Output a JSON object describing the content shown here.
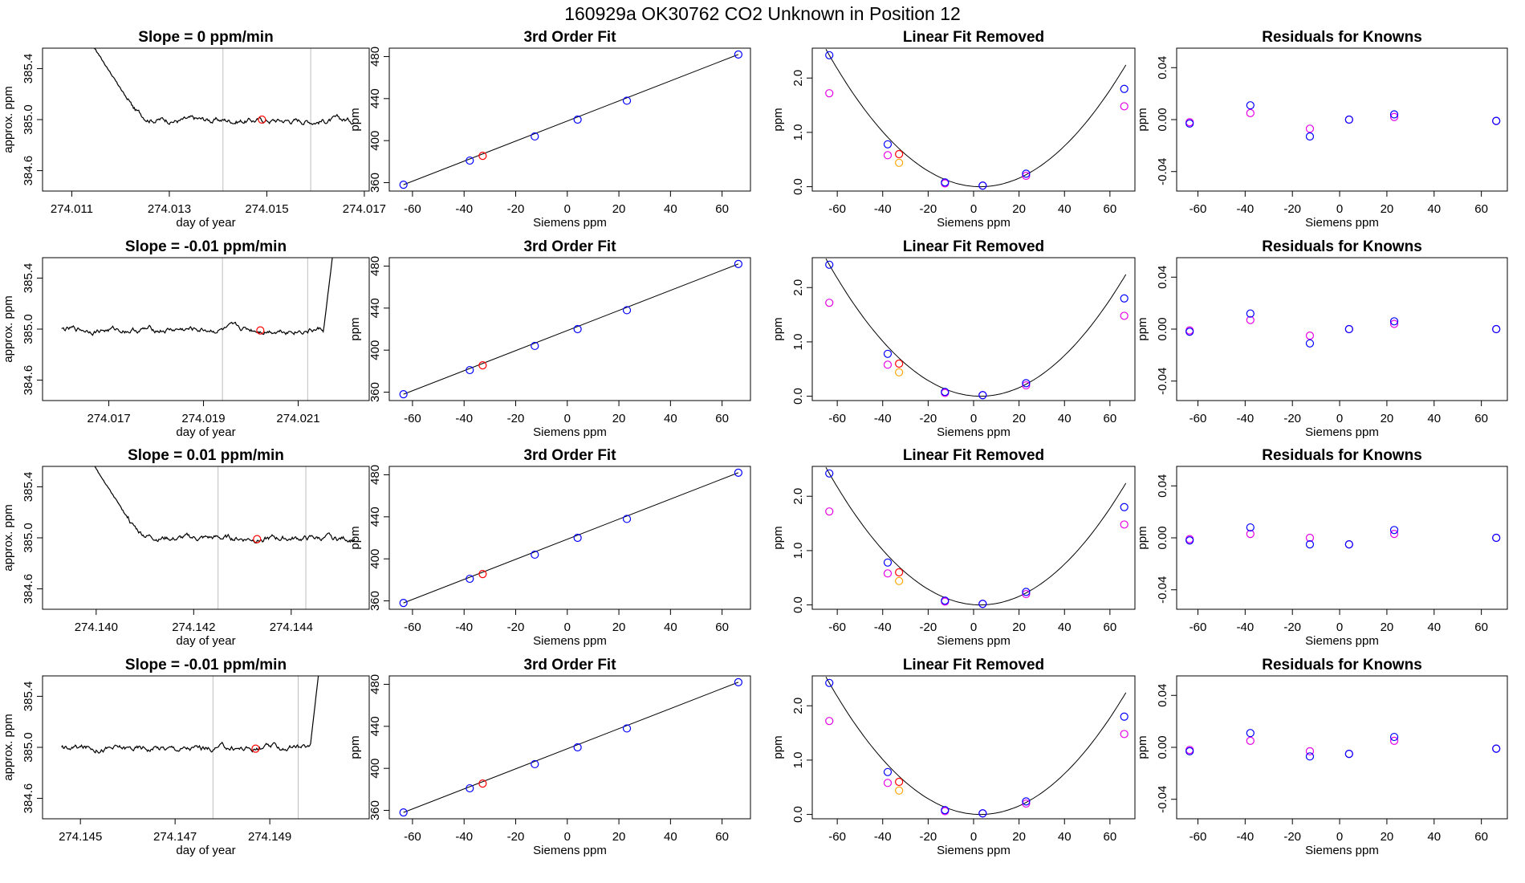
{
  "suptitle": "160929a      OK30762    CO2 Unknown in Position  12",
  "colors": {
    "known": "#0000ff",
    "aux": "#e600e6",
    "unknown": "#ff0000",
    "mid": "#ffa500",
    "vline": "#bebebe",
    "axis": "#000000"
  },
  "fit_data": {
    "x": [
      -63.5,
      -37.8,
      -12.6,
      4.0,
      23.1,
      66.3
    ],
    "y": [
      358,
      381,
      404,
      420,
      438,
      482
    ],
    "unknown": {
      "x": -32.8,
      "y": 385.5
    },
    "lfr_known": [
      2.42,
      0.78,
      0.08,
      0.02,
      0.24,
      1.8
    ],
    "lfr_aux": [
      1.72,
      0.58,
      0.06,
      0.02,
      0.2,
      1.48
    ],
    "lfr_unknown": 0.6,
    "lfr_mid": 0.44,
    "residuals": [
      {
        "known": [
          -0.003,
          0.011,
          -0.013,
          0.0,
          0.004,
          -0.001
        ],
        "aux": [
          -0.002,
          0.005,
          -0.007,
          0.0,
          0.002,
          -0.001
        ]
      },
      {
        "known": [
          -0.002,
          0.012,
          -0.011,
          0.0,
          0.006,
          0.0
        ],
        "aux": [
          -0.001,
          0.007,
          -0.005,
          0.0,
          0.004,
          0.0
        ]
      },
      {
        "known": [
          -0.002,
          0.008,
          -0.005,
          -0.005,
          0.006,
          0.0
        ],
        "aux": [
          -0.001,
          0.003,
          0.0,
          -0.005,
          0.003,
          0.0
        ]
      },
      {
        "known": [
          -0.003,
          0.011,
          -0.007,
          -0.005,
          0.008,
          -0.001
        ],
        "aux": [
          -0.002,
          0.005,
          -0.003,
          -0.005,
          0.005,
          -0.001
        ]
      }
    ]
  },
  "chart_data": [
    {
      "type": "line",
      "title": "Slope =  0  ppm/min",
      "xlabel": "day of year",
      "ylabel": "approx. ppm",
      "xlim": [
        274.0104,
        274.0171
      ],
      "ylim": [
        384.44,
        385.56
      ],
      "xticks": [
        "274.011",
        "274.013",
        "274.015",
        "274.017"
      ],
      "yticks": [
        "384.6",
        "385.0",
        "385.4"
      ],
      "vlines": [
        274.0141,
        274.0159
      ],
      "point": {
        "x": 274.0149,
        "y": 385.0
      },
      "trace": "drop",
      "trace_range": [
        274.0114,
        274.0168
      ]
    },
    {
      "type": "line",
      "title": "3rd Order Fit",
      "xlabel": "Siemens ppm",
      "ylabel": "ppm",
      "xlim": [
        -69,
        71
      ],
      "ylim": [
        352,
        488
      ],
      "xticks": [
        "-60",
        "-40",
        "-20",
        "0",
        "20",
        "40",
        "60"
      ],
      "yticks": [
        "360",
        "400",
        "440",
        "480"
      ]
    },
    {
      "type": "scatter",
      "title": "Linear Fit Removed",
      "xlabel": "Siemens ppm",
      "ylabel": "ppm",
      "xlim": [
        -71,
        71
      ],
      "ylim": [
        -0.08,
        2.55
      ],
      "xticks": [
        "-60",
        "-40",
        "-20",
        "0",
        "20",
        "40",
        "60"
      ],
      "yticks": [
        "0.0",
        "1.0",
        "2.0"
      ]
    },
    {
      "type": "scatter",
      "title": "Residuals for Knowns",
      "xlabel": "Siemens ppm",
      "ylabel": "ppm",
      "xlim": [
        -69,
        71
      ],
      "ylim": [
        -0.055,
        0.055
      ],
      "xticks": [
        "-60",
        "-40",
        "-20",
        "0",
        "20",
        "40",
        "60"
      ],
      "yticks": [
        "-0.04",
        "0.00",
        "0.04"
      ],
      "residual_row": 0
    },
    {
      "type": "line",
      "title": "Slope =  -0.01  ppm/min",
      "xlabel": "day of year",
      "ylabel": "approx. ppm",
      "xlim": [
        274.0156,
        274.0225
      ],
      "ylim": [
        384.44,
        385.56
      ],
      "xticks": [
        "274.017",
        "274.019",
        "274.021"
      ],
      "yticks": [
        "384.6",
        "385.0",
        "385.4"
      ],
      "vlines": [
        274.0194,
        274.0212
      ],
      "point": {
        "x": 274.0202,
        "y": 384.99
      },
      "trace": "rise",
      "trace_range": [
        274.016,
        274.0218
      ]
    },
    {
      "type": "line",
      "title": "3rd Order Fit",
      "xlabel": "Siemens ppm",
      "ylabel": "ppm",
      "xlim": [
        -69,
        71
      ],
      "ylim": [
        352,
        488
      ],
      "xticks": [
        "-60",
        "-40",
        "-20",
        "0",
        "20",
        "40",
        "60"
      ],
      "yticks": [
        "360",
        "400",
        "440",
        "480"
      ]
    },
    {
      "type": "scatter",
      "title": "Linear Fit Removed",
      "xlabel": "Siemens ppm",
      "ylabel": "ppm",
      "xlim": [
        -71,
        71
      ],
      "ylim": [
        -0.08,
        2.55
      ],
      "xticks": [
        "-60",
        "-40",
        "-20",
        "0",
        "20",
        "40",
        "60"
      ],
      "yticks": [
        "0.0",
        "1.0",
        "2.0"
      ]
    },
    {
      "type": "scatter",
      "title": "Residuals for Knowns",
      "xlabel": "Siemens ppm",
      "ylabel": "ppm",
      "xlim": [
        -69,
        71
      ],
      "ylim": [
        -0.055,
        0.055
      ],
      "xticks": [
        "-60",
        "-40",
        "-20",
        "0",
        "20",
        "40",
        "60"
      ],
      "yticks": [
        "-0.04",
        "0.00",
        "0.04"
      ],
      "residual_row": 1
    },
    {
      "type": "line",
      "title": "Slope =  0.01  ppm/min",
      "xlabel": "day of year",
      "ylabel": "approx. ppm",
      "xlim": [
        274.1389,
        274.1456
      ],
      "ylim": [
        384.44,
        385.56
      ],
      "xticks": [
        "274.140",
        "274.142",
        "274.144"
      ],
      "yticks": [
        "384.6",
        "385.0",
        "385.4"
      ],
      "vlines": [
        274.1425,
        274.1443
      ],
      "point": {
        "x": 274.1433,
        "y": 384.99
      },
      "trace": "drop",
      "trace_range": [
        274.1399,
        274.1453
      ]
    },
    {
      "type": "line",
      "title": "3rd Order Fit",
      "xlabel": "Siemens ppm",
      "ylabel": "ppm",
      "xlim": [
        -69,
        71
      ],
      "ylim": [
        352,
        488
      ],
      "xticks": [
        "-60",
        "-40",
        "-20",
        "0",
        "20",
        "40",
        "60"
      ],
      "yticks": [
        "360",
        "400",
        "440",
        "480"
      ]
    },
    {
      "type": "scatter",
      "title": "Linear Fit Removed",
      "xlabel": "Siemens ppm",
      "ylabel": "ppm",
      "xlim": [
        -71,
        71
      ],
      "ylim": [
        -0.08,
        2.55
      ],
      "xticks": [
        "-60",
        "-40",
        "-20",
        "0",
        "20",
        "40",
        "60"
      ],
      "yticks": [
        "0.0",
        "1.0",
        "2.0"
      ]
    },
    {
      "type": "scatter",
      "title": "Residuals for Knowns",
      "xlabel": "Siemens ppm",
      "ylabel": "ppm",
      "xlim": [
        -69,
        71
      ],
      "ylim": [
        -0.055,
        0.055
      ],
      "xticks": [
        "-60",
        "-40",
        "-20",
        "0",
        "20",
        "40",
        "60"
      ],
      "yticks": [
        "-0.04",
        "0.00",
        "0.04"
      ],
      "residual_row": 2
    },
    {
      "type": "line",
      "title": "Slope =  -0.01  ppm/min",
      "xlabel": "day of year",
      "ylabel": "approx. ppm",
      "xlim": [
        274.1442,
        274.1511
      ],
      "ylim": [
        384.44,
        385.56
      ],
      "xticks": [
        "274.145",
        "274.147",
        "274.149"
      ],
      "yticks": [
        "384.6",
        "385.0",
        "385.4"
      ],
      "vlines": [
        274.1478,
        274.1496
      ],
      "point": {
        "x": 274.1487,
        "y": 384.99
      },
      "trace": "rise",
      "trace_range": [
        274.1446,
        274.1501
      ]
    },
    {
      "type": "line",
      "title": "3rd Order Fit",
      "xlabel": "Siemens ppm",
      "ylabel": "ppm",
      "xlim": [
        -69,
        71
      ],
      "ylim": [
        352,
        488
      ],
      "xticks": [
        "-60",
        "-40",
        "-20",
        "0",
        "20",
        "40",
        "60"
      ],
      "yticks": [
        "360",
        "400",
        "440",
        "480"
      ]
    },
    {
      "type": "scatter",
      "title": "Linear Fit Removed",
      "xlabel": "Siemens ppm",
      "ylabel": "ppm",
      "xlim": [
        -71,
        71
      ],
      "ylim": [
        -0.08,
        2.55
      ],
      "xticks": [
        "-60",
        "-40",
        "-20",
        "0",
        "20",
        "40",
        "60"
      ],
      "yticks": [
        "0.0",
        "1.0",
        "2.0"
      ]
    },
    {
      "type": "scatter",
      "title": "Residuals for Knowns",
      "xlabel": "Siemens ppm",
      "ylabel": "ppm",
      "xlim": [
        -69,
        71
      ],
      "ylim": [
        -0.055,
        0.055
      ],
      "xticks": [
        "-60",
        "-40",
        "-20",
        "0",
        "20",
        "40",
        "60"
      ],
      "yticks": [
        "-0.04",
        "0.00",
        "0.04"
      ],
      "residual_row": 3
    }
  ]
}
